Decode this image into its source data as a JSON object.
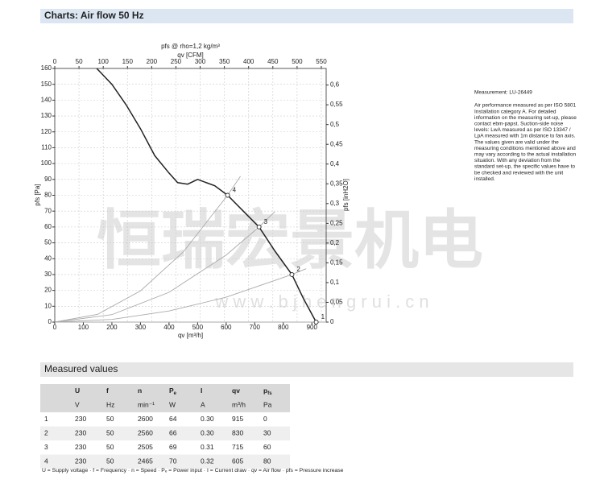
{
  "header": {
    "title": "Charts: Air flow 50 Hz"
  },
  "chart_data": {
    "type": "line",
    "title": "pfs @ rho=1,2 kg/m³",
    "x2_label": "qv [CFM]",
    "x_label": "qv [m³/h]",
    "y_label": "pfs [Pa]",
    "y2_label": "pfs [inH2O]",
    "xlim": [
      0,
      950
    ],
    "xticks": [
      0,
      100,
      200,
      300,
      400,
      500,
      600,
      700,
      800,
      900
    ],
    "x2lim": [
      0,
      560
    ],
    "x2ticks": [
      0,
      50,
      100,
      150,
      200,
      250,
      300,
      350,
      400,
      450,
      500,
      550
    ],
    "ylim": [
      0,
      160
    ],
    "yticks": [
      0,
      10,
      20,
      30,
      40,
      50,
      60,
      70,
      80,
      90,
      100,
      110,
      120,
      130,
      140,
      150,
      160
    ],
    "y2lim": [
      0,
      0.642
    ],
    "y2ticks": [
      {
        "value": 0,
        "label": "0"
      },
      {
        "value": 0.05,
        "label": "0,05"
      },
      {
        "value": 0.1,
        "label": "0,1"
      },
      {
        "value": 0.15,
        "label": "0,15"
      },
      {
        "value": 0.2,
        "label": "0,2"
      },
      {
        "value": 0.25,
        "label": "0,25"
      },
      {
        "value": 0.3,
        "label": "0,3"
      },
      {
        "value": 0.35,
        "label": "0,35"
      },
      {
        "value": 0.4,
        "label": "0,4"
      },
      {
        "value": 0.45,
        "label": "0,45"
      },
      {
        "value": 0.5,
        "label": "0,5"
      },
      {
        "value": 0.55,
        "label": "0,55"
      },
      {
        "value": 0.6,
        "label": "0,6"
      }
    ],
    "grid": true,
    "fan_curve": {
      "color": "#222222",
      "x": [
        147,
        200,
        250,
        300,
        350,
        400,
        430,
        465,
        500,
        530,
        560,
        605,
        660,
        715,
        770,
        830,
        870,
        915
      ],
      "values": [
        160,
        150,
        137,
        122,
        105,
        94,
        88,
        87,
        90,
        88,
        86,
        80,
        70,
        60,
        45,
        30,
        15,
        0
      ]
    },
    "system_curves": [
      {
        "color": "#aaaaaa",
        "x": [
          0,
          200,
          400,
          600,
          800,
          950
        ],
        "values": [
          0,
          0,
          0,
          0,
          0,
          0
        ]
      },
      {
        "color": "#aaaaaa",
        "x": [
          0,
          200,
          400,
          600,
          830,
          880
        ],
        "values": [
          0,
          1.7,
          7,
          15.7,
          30,
          33.7
        ]
      },
      {
        "color": "#aaaaaa",
        "x": [
          0,
          200,
          400,
          600,
          715,
          770
        ],
        "values": [
          0,
          4.7,
          18.8,
          42.3,
          60,
          69.6
        ]
      },
      {
        "color": "#aaaaaa",
        "x": [
          0,
          150,
          300,
          450,
          605,
          650
        ],
        "values": [
          0,
          4.9,
          19.7,
          44.3,
          80,
          92
        ]
      }
    ],
    "points": {
      "labels": [
        "1",
        "2",
        "3",
        "4"
      ],
      "x": [
        915,
        830,
        715,
        605
      ],
      "values": [
        0,
        30,
        60,
        80
      ]
    }
  },
  "watermark": {
    "cn": "恒瑞宏景机电",
    "url": "w w w . b j h e n g r u i . c n"
  },
  "notes": {
    "measurement": "Measurement: LU-26449",
    "lines": [
      "Air performance measured as per ISO 5801",
      "Installation category A. For detailed",
      "information on the measuring set-up, please",
      "contact ebm-papst. Suction-side noise",
      "levels: LwA measured as per ISO 13347 /",
      "LpA measured with 1m distance to fan axis.",
      "The values given are valid under the",
      "measuring conditions mentioned above and",
      "may vary according to the actual installation",
      "situation. With any deviation from the",
      "standard set-up, the specific values have to",
      "be checked and reviewed with the unit",
      "installed."
    ]
  },
  "measured": {
    "title": "Measured values",
    "header": [
      "U",
      "f",
      "n",
      {
        "main": "P",
        "sub": "e"
      },
      "I",
      "qv",
      {
        "main": "p",
        "sub": "fs"
      }
    ],
    "units": [
      "V",
      "Hz",
      "min⁻¹",
      "W",
      "A",
      "m³/h",
      "Pa"
    ],
    "rows": [
      [
        "1",
        "230",
        "50",
        "2600",
        "64",
        "0.30",
        "915",
        "0"
      ],
      [
        "2",
        "230",
        "50",
        "2560",
        "66",
        "0.30",
        "830",
        "30"
      ],
      [
        "3",
        "230",
        "50",
        "2505",
        "69",
        "0.31",
        "715",
        "60"
      ],
      [
        "4",
        "230",
        "50",
        "2465",
        "70",
        "0.32",
        "605",
        "80"
      ]
    ],
    "legend": "U = Supply voltage · f = Frequency · n = Speed · Pₑ = Power input · I = Current draw · qv = Air flow · pfs = Pressure increase"
  }
}
